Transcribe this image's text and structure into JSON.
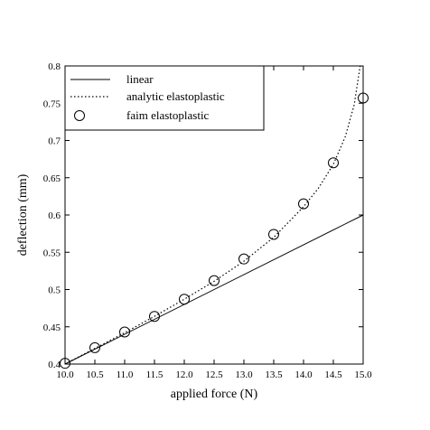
{
  "chart_data": {
    "type": "line",
    "xlabel": "applied force (N)",
    "ylabel": "deflection (mm)",
    "xlim": [
      10.0,
      15.0
    ],
    "ylim": [
      0.4,
      0.8
    ],
    "x_ticks": [
      10.0,
      10.5,
      11.0,
      11.5,
      12.0,
      12.5,
      13.0,
      13.5,
      14.0,
      14.5,
      15.0
    ],
    "x_tick_labels": [
      "10.0",
      "10.5",
      "11.0",
      "11.5",
      "12.0",
      "12.5",
      "13.0",
      "13.5",
      "14.0",
      "14.5",
      "15.0"
    ],
    "y_ticks": [
      0.4,
      0.45,
      0.5,
      0.55,
      0.6,
      0.65,
      0.7,
      0.75,
      0.8
    ],
    "y_tick_labels": [
      "0.4",
      "0.45",
      "0.5",
      "0.55",
      "0.6",
      "0.65",
      "0.7",
      "0.75",
      "0.8"
    ],
    "grid": false,
    "legend_position": "top-left",
    "series": [
      {
        "name": "linear",
        "style": "solid",
        "color": "#000000",
        "x": [
          10.0,
          15.0
        ],
        "y": [
          0.4,
          0.6
        ]
      },
      {
        "name": "analytic elastoplastic",
        "style": "dotted",
        "color": "#000000",
        "x": [
          10.0,
          10.5,
          11.0,
          11.5,
          12.0,
          12.5,
          13.0,
          13.5,
          14.0,
          14.25,
          14.5,
          14.7,
          14.85,
          14.95
        ],
        "y": [
          0.4,
          0.421,
          0.442,
          0.464,
          0.487,
          0.511,
          0.538,
          0.57,
          0.611,
          0.636,
          0.668,
          0.705,
          0.748,
          0.8
        ]
      },
      {
        "name": "faim elastoplastic",
        "style": "markers",
        "marker": "open-circle",
        "color": "#000000",
        "x": [
          10.0,
          10.5,
          11.0,
          11.5,
          12.0,
          12.5,
          13.0,
          13.5,
          14.0,
          14.5,
          15.0
        ],
        "y": [
          0.401,
          0.422,
          0.443,
          0.464,
          0.487,
          0.512,
          0.541,
          0.574,
          0.615,
          0.67,
          0.757
        ]
      }
    ]
  }
}
